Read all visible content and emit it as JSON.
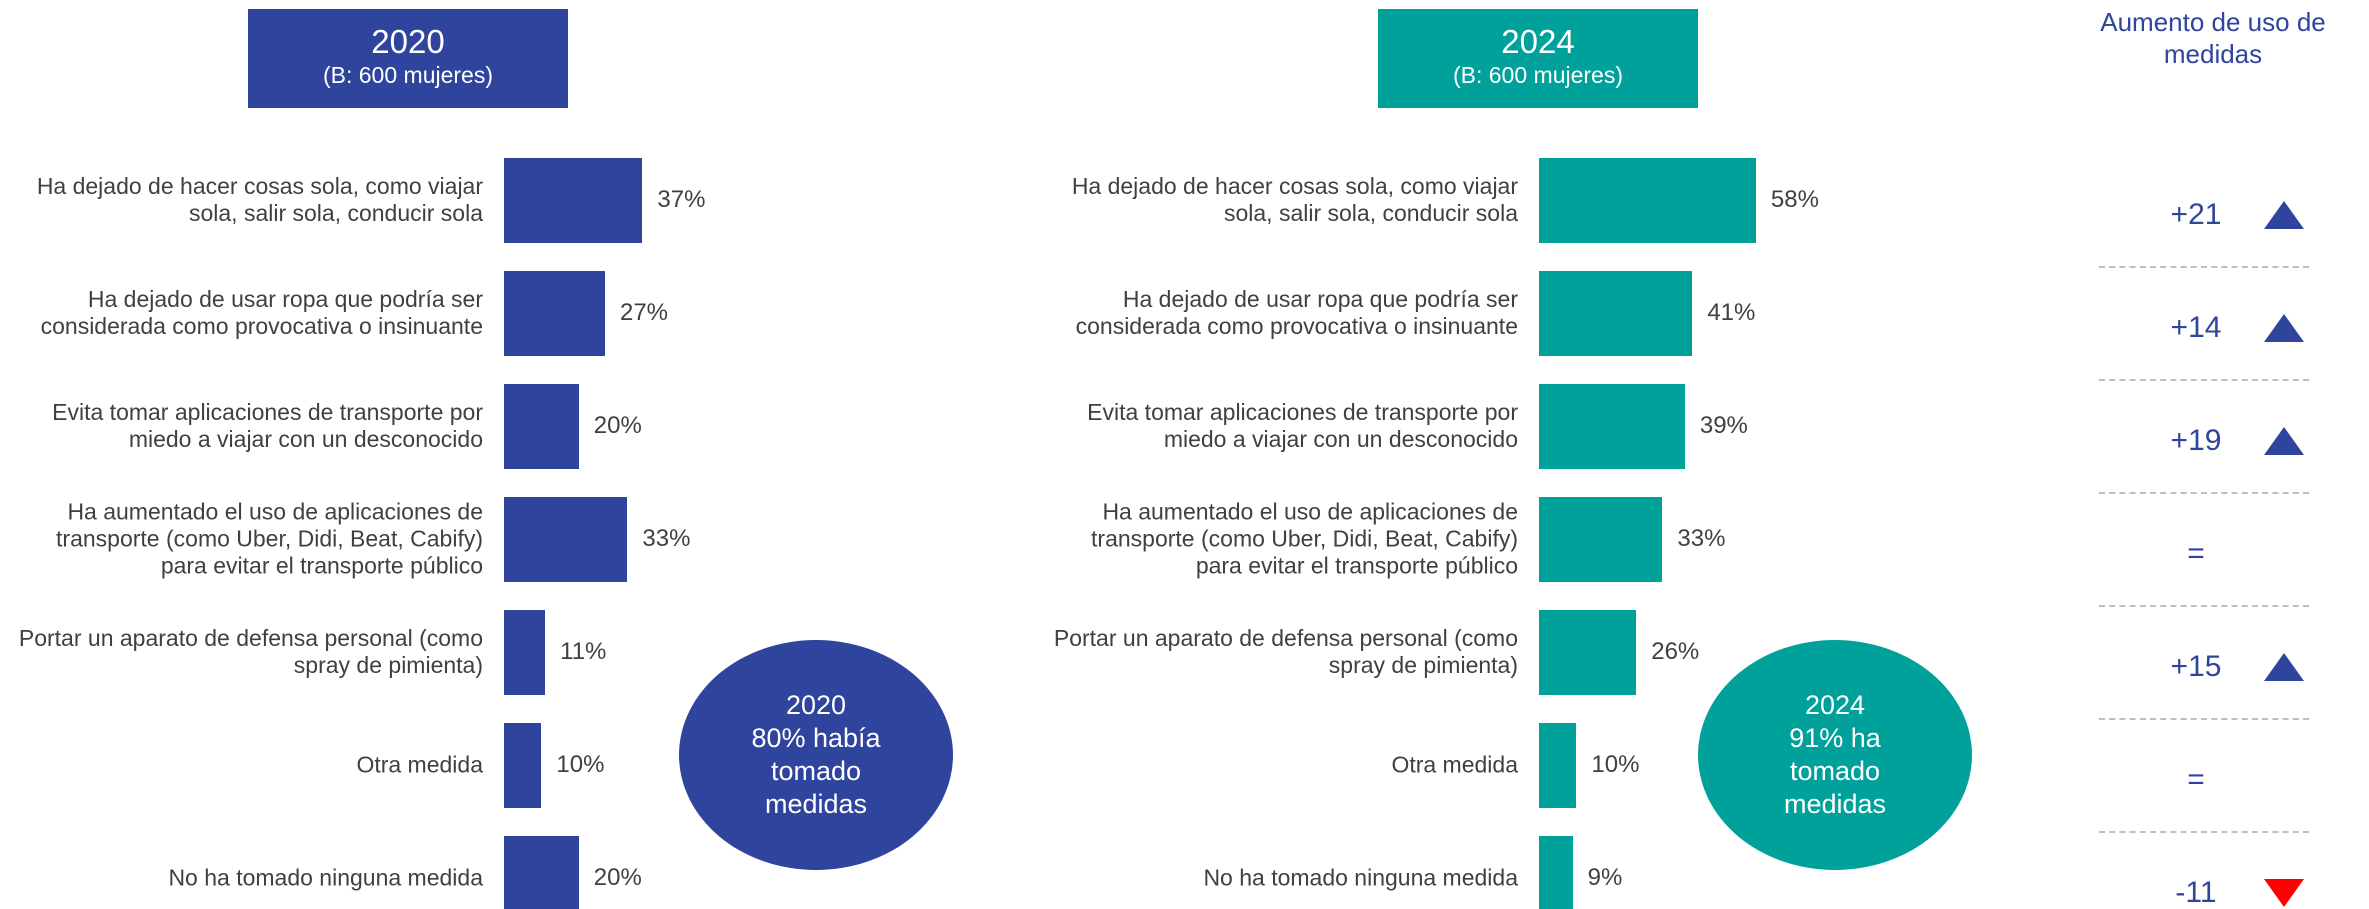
{
  "chart_data": [
    {
      "type": "bar",
      "title": "2020",
      "subtitle": "(B: 600 mujeres)",
      "color": "#2f449d",
      "categories": [
        "Ha dejado de hacer cosas sola, como viajar sola, salir sola, conducir sola",
        "Ha dejado de usar ropa que podría ser considerada como provocativa o insinuante",
        "Evita tomar aplicaciones de transporte por miedo a viajar con un desconocido",
        "Ha aumentado el uso de aplicaciones de transporte (como Uber, Didi, Beat, Cabify) para evitar el transporte público",
        "Portar un aparato de defensa personal (como spray de pimienta)",
        "Otra medida",
        "No ha tomado ninguna medida"
      ],
      "values": [
        37,
        27,
        20,
        33,
        11,
        10,
        20
      ],
      "value_labels": [
        "37%",
        "27%",
        "20%",
        "33%",
        "11%",
        "10%",
        "20%"
      ],
      "annotation": [
        "2020",
        "80% había",
        "tomado",
        "medidas"
      ]
    },
    {
      "type": "bar",
      "title": "2024",
      "subtitle": "(B: 600 mujeres)",
      "color": "#00a19b",
      "categories": [
        "Ha dejado de hacer cosas sola, como viajar sola, salir sola, conducir sola",
        "Ha dejado de usar ropa que podría ser considerada como provocativa o insinuante",
        "Evita tomar aplicaciones de transporte por miedo a viajar con un desconocido",
        "Ha aumentado el uso de aplicaciones de transporte (como Uber, Didi, Beat, Cabify) para evitar el transporte público",
        "Portar un aparato de defensa personal (como spray de pimienta)",
        "Otra medida",
        "No ha tomado ninguna medida"
      ],
      "values": [
        58,
        41,
        39,
        33,
        26,
        10,
        9
      ],
      "value_labels": [
        "58%",
        "41%",
        "39%",
        "33%",
        "26%",
        "10%",
        "9%"
      ],
      "annotation": [
        "2024",
        "91% ha",
        "tomado",
        "medidas"
      ]
    },
    {
      "type": "difference",
      "title": "Aumento de uso de medidas",
      "values": [
        21,
        14,
        19,
        0,
        15,
        0,
        -11
      ],
      "value_labels": [
        "+21",
        "+14",
        "+19",
        "=",
        "+15",
        "=",
        "-11"
      ],
      "up_color": "#2f449d",
      "down_color": "#ff0000",
      "color": "#2f449d"
    }
  ]
}
